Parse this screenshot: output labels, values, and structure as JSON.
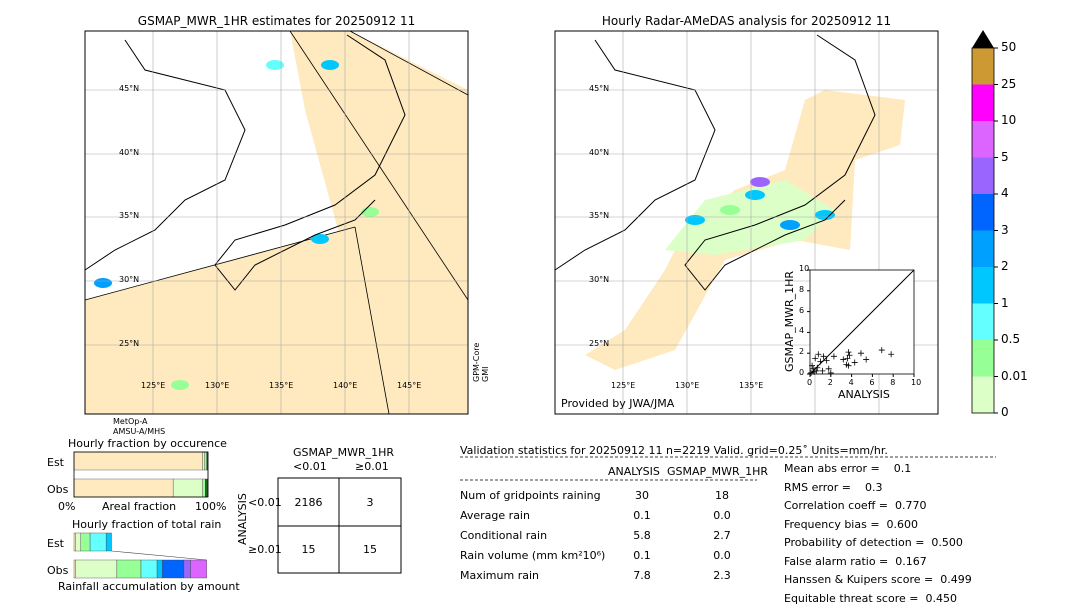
{
  "left_map": {
    "title": "GSMAP_MWR_1HR estimates for 20250912 11",
    "lat_labels": [
      "45°N",
      "40°N",
      "35°N",
      "30°N",
      "25°N"
    ],
    "lon_labels": [
      "125°E",
      "130°E",
      "135°E",
      "140°E",
      "145°E"
    ],
    "side_label": "GPM-Core\nGMI",
    "bottom_label_1": "MetOp-A",
    "bottom_label_2": "AMSU-A/MHS"
  },
  "right_map": {
    "title": "Hourly Radar-AMeDAS analysis for 20250912 11",
    "lat_labels": [
      "45°N",
      "40°N",
      "35°N",
      "30°N",
      "25°N"
    ],
    "lon_labels": [
      "125°E",
      "130°E",
      "135°E"
    ],
    "credit": "Provided by JWA/JMA"
  },
  "colorbar": {
    "labels": [
      "50",
      "25",
      "10",
      "5",
      "4",
      "3",
      "2",
      "1",
      "0.5",
      "0.01",
      "0"
    ],
    "colors": [
      "#cc9933",
      "#ff00ff",
      "#dc64ff",
      "#9a64ff",
      "#0064ff",
      "#00a0ff",
      "#00c8ff",
      "#64ffff",
      "#96ff96",
      "#dcffc8",
      "#ffe9be"
    ]
  },
  "chart_data": [
    {
      "type": "scatter",
      "xlabel": "ANALYSIS",
      "ylabel": "GSMAP_MWR_1HR",
      "xlim": [
        0,
        10
      ],
      "ylim": [
        0,
        10
      ],
      "ticks": [
        "0",
        "2",
        "4",
        "6",
        "8",
        "10"
      ],
      "points": [
        [
          0.8,
          1.9
        ],
        [
          1.3,
          1.7
        ],
        [
          2.3,
          1.7
        ],
        [
          1.6,
          1.3
        ],
        [
          1.0,
          1.2
        ],
        [
          0.5,
          1.5
        ],
        [
          3.2,
          1.4
        ],
        [
          3.6,
          1.5
        ],
        [
          3.7,
          2.1
        ],
        [
          3.8,
          1.8
        ],
        [
          3.5,
          0.9
        ],
        [
          3.7,
          0.8
        ],
        [
          4.3,
          1.1
        ],
        [
          4.9,
          2.0
        ],
        [
          5.4,
          1.4
        ],
        [
          6.9,
          2.3
        ],
        [
          7.8,
          1.9
        ],
        [
          1.8,
          0.5
        ],
        [
          2.0,
          0.1
        ],
        [
          0.3,
          0.5
        ],
        [
          0.6,
          0.3
        ],
        [
          0.1,
          0.1
        ],
        [
          0.4,
          0.2
        ],
        [
          0.2,
          0.8
        ],
        [
          1.2,
          0.3
        ],
        [
          0.7,
          0.6
        ]
      ]
    },
    {
      "type": "bar",
      "title": "Hourly fraction by occurence",
      "xlabel": "Areal fraction",
      "x_tick_left": "0%",
      "x_tick_right": "100%",
      "categories": [
        "Est",
        "Obs"
      ],
      "segments": {
        "Est": [
          [
            "#ffe9be",
            96
          ],
          [
            "#dcffc8",
            1.5
          ],
          [
            "#96ff96",
            1.5
          ],
          [
            "#226622",
            1
          ]
        ],
        "Obs": [
          [
            "#ffe9be",
            74
          ],
          [
            "#dcffc8",
            22
          ],
          [
            "#96ff96",
            2
          ],
          [
            "#226622",
            2
          ]
        ]
      }
    },
    {
      "type": "bar",
      "title": "Hourly fraction of total rain",
      "xlabel": "Rainfall accumulation by amount",
      "categories": [
        "Est",
        "Obs"
      ],
      "segments": {
        "Est": [
          [
            "#ffe9be",
            1
          ],
          [
            "#dcffc8",
            4
          ],
          [
            "#96ff96",
            7
          ],
          [
            "#64ffff",
            12
          ],
          [
            "#00c8ff",
            4
          ]
        ],
        "Obs": [
          [
            "#ffe9be",
            1
          ],
          [
            "#dcffc8",
            31
          ],
          [
            "#96ff96",
            18
          ],
          [
            "#64ffff",
            12
          ],
          [
            "#00c8ff",
            4
          ],
          [
            "#0064ff",
            16
          ],
          [
            "#9a64ff",
            5
          ],
          [
            "#dc64ff",
            12
          ]
        ]
      }
    }
  ],
  "contingency": {
    "title": "GSMAP_MWR_1HR",
    "col_labels": [
      "<0.01",
      "≥0.01"
    ],
    "row_axis": "ANALYSIS",
    "row_labels": [
      "<0.01",
      "≥0.01"
    ],
    "cells": [
      [
        "2186",
        "3"
      ],
      [
        "15",
        "15"
      ]
    ]
  },
  "stats": {
    "header": "Validation statistics for 20250912 11  n=2219 Valid. grid=0.25˚ Units=mm/hr.",
    "col1": "ANALYSIS",
    "col2": "GSMAP_MWR_1HR",
    "rows": [
      {
        "label": "Num of gridpoints raining",
        "a": "30",
        "b": "18"
      },
      {
        "label": "Average rain",
        "a": "0.1",
        "b": "0.0"
      },
      {
        "label": "Conditional rain",
        "a": "5.8",
        "b": "2.7"
      },
      {
        "label": "Rain volume (mm km²10⁶)",
        "a": "0.1",
        "b": "0.0"
      },
      {
        "label": "Maximum rain",
        "a": "7.8",
        "b": "2.3"
      }
    ],
    "scores": [
      "Mean abs error =    0.1",
      "RMS error =    0.3",
      "Correlation coeff =  0.770",
      "Frequency bias =  0.600",
      "Probability of detection =  0.500",
      "False alarm ratio =  0.167",
      "Hanssen & Kuipers score =  0.499",
      "Equitable threat score =  0.450"
    ]
  }
}
